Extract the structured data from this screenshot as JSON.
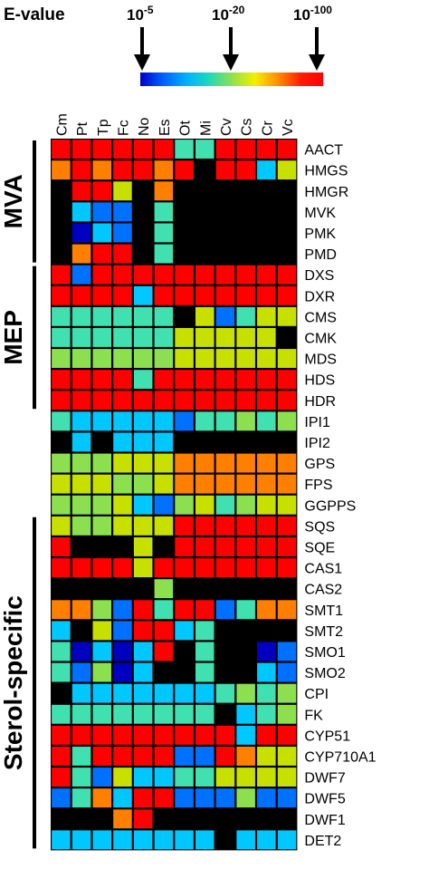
{
  "chart_data": {
    "type": "heatmap",
    "legend": {
      "title": "E-value",
      "ticks": [
        {
          "base": "10",
          "exp": "-5"
        },
        {
          "base": "10",
          "exp": "-20"
        },
        {
          "base": "10",
          "exp": "-100"
        }
      ],
      "colors": [
        "#0000c8",
        "#0060ff",
        "#00b0ff",
        "#20d8b8",
        "#90e050",
        "#f0f000",
        "#ff9000",
        "#ff2000",
        "#ff0000"
      ]
    },
    "columns": [
      "Cm",
      "Pt",
      "Tp",
      "Fc",
      "No",
      "Es",
      "Ot",
      "Mi",
      "Cv",
      "Cs",
      "Cr",
      "Vc"
    ],
    "rows": [
      "AACT",
      "HMGS",
      "HMGR",
      "MVK",
      "PMK",
      "PMD",
      "DXS",
      "DXR",
      "CMS",
      "CMK",
      "MDS",
      "HDS",
      "HDR",
      "IPI1",
      "IPI2",
      "GPS",
      "FPS",
      "GGPPS",
      "SQS",
      "SQE",
      "CAS1",
      "CAS2",
      "SMT1",
      "SMT2",
      "SMO1",
      "SMO2",
      "CPI",
      "FK",
      "CYP51",
      "CYP710A1",
      "DWF7",
      "DWF5",
      "DWF1",
      "DET2"
    ],
    "groups": [
      {
        "label": "MVA",
        "start_row": 0,
        "end_row": 5
      },
      {
        "label": "MEP",
        "start_row": 6,
        "end_row": 12
      },
      {
        "label": "Sterol-specific",
        "start_row": 18,
        "end_row": 33
      }
    ],
    "palette": {
      "R": "#ff0000",
      "O": "#ff8000",
      "Y": "#c8e000",
      "G": "#8ce050",
      "T": "#40e0b0",
      "C": "#00c8ff",
      "B": "#0070ff",
      "D": "#0000c0",
      "K": "#000000"
    },
    "cells": [
      "RRRRRRTTRRRR",
      "ORORRORKRRCY",
      "KRRYKOKKKKKK",
      "KCBBKTKKKKKK",
      "KDCBKTKKKKKK",
      "KORRKTKKKKKK",
      "RBRRRRRRRRRR",
      "RRRRCRRRRRRR",
      "TTTTTTKYBTYY",
      "TTTTTTYYYYYK",
      "GGGGGGYYYYYY",
      "RRRRTRRRRRRR",
      "RRRRRRRRRRRR",
      "TCCCCCBTTGTG",
      "KCKCCCKKKKKK",
      "GGGYYYOOOOOO",
      "YYYGGYOOOOOO",
      "GGGYCBGYTGYY",
      "YGGYYYRRRRRR",
      "RKKKYKRRRRRR",
      "RRRRYRRRRRRR",
      "KKKKKGKKKKKK",
      "OOGBRTRRBTOO",
      "CKYBRRCTKKKK",
      "TDCDCRKTKKDB",
      "TBGDCKKTKKCB",
      "KCCCCCCCTGTG",
      "TTTTTTTTKCTG",
      "RRRRRRRRRCRR",
      "RTRRRRBBROYY",
      "RTBYCCTTYYYY",
      "BTOCRRBBBGBB",
      "KKKORKKKKKKK",
      "CCCCCCCCKCCC"
    ]
  }
}
